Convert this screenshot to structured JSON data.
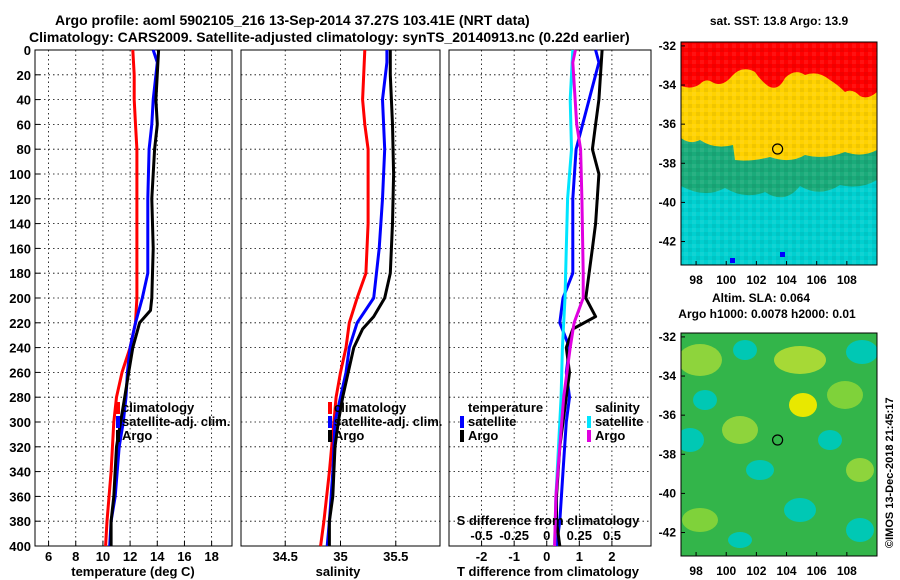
{
  "header": {
    "title_line1": "Argo profile: aoml 5902105_216 13-Sep-2014 37.27S 103.41E (NRT data)",
    "title_line2": "Climatology: CARS2009. Satellite-adjusted climatology: synTS_20140913.nc (0.22d earlier)"
  },
  "credit": "©IMOS 13-Dec-2018 21:45:17",
  "colors": {
    "climatology": "#ff0000",
    "satellite": "#0000ff",
    "argo": "#000000",
    "salinity_satellite": "#00e5ff",
    "salinity_argo": "#e000e0"
  },
  "chart_data": [
    {
      "type": "line",
      "title": "",
      "xlabel": "temperature (deg C)",
      "ylabel": "",
      "xlim": [
        5,
        19.5
      ],
      "ylim": [
        400,
        0
      ],
      "xticks": [
        6,
        8,
        10,
        12,
        14,
        16,
        18
      ],
      "yticks": [
        0,
        20,
        40,
        60,
        80,
        100,
        120,
        140,
        160,
        180,
        200,
        220,
        240,
        260,
        280,
        300,
        320,
        340,
        360,
        380,
        400
      ],
      "grid": true,
      "legend": {
        "position": "center-right",
        "labels": [
          "climatology",
          "satellite-adj. clim.",
          "Argo"
        ]
      },
      "series": [
        {
          "name": "climatology",
          "color": "#ff0000",
          "points": [
            [
              12.2,
              0
            ],
            [
              12.3,
              20
            ],
            [
              12.3,
              40
            ],
            [
              12.4,
              60
            ],
            [
              12.5,
              80
            ],
            [
              12.5,
              120
            ],
            [
              12.5,
              200
            ],
            [
              12.4,
              220
            ],
            [
              12.0,
              240
            ],
            [
              11.4,
              260
            ],
            [
              11.0,
              280
            ],
            [
              10.8,
              300
            ],
            [
              10.6,
              340
            ],
            [
              10.3,
              380
            ],
            [
              10.2,
              400
            ]
          ]
        },
        {
          "name": "satellite-adj. clim.",
          "color": "#0000ff",
          "points": [
            [
              13.7,
              0
            ],
            [
              14.0,
              10
            ],
            [
              13.7,
              40
            ],
            [
              13.6,
              60
            ],
            [
              13.4,
              80
            ],
            [
              13.3,
              120
            ],
            [
              13.3,
              180
            ],
            [
              12.9,
              200
            ],
            [
              12.4,
              220
            ],
            [
              12.0,
              240
            ],
            [
              11.8,
              260
            ],
            [
              11.7,
              280
            ],
            [
              11.5,
              300
            ],
            [
              11.2,
              320
            ],
            [
              10.9,
              360
            ],
            [
              10.6,
              380
            ],
            [
              10.5,
              400
            ]
          ]
        },
        {
          "name": "Argo",
          "color": "#000000",
          "points": [
            [
              14.1,
              0
            ],
            [
              13.9,
              40
            ],
            [
              14.0,
              60
            ],
            [
              13.8,
              80
            ],
            [
              13.7,
              100
            ],
            [
              13.6,
              120
            ],
            [
              13.7,
              160
            ],
            [
              13.6,
              200
            ],
            [
              13.5,
              210
            ],
            [
              12.7,
              220
            ],
            [
              12.2,
              240
            ],
            [
              11.9,
              260
            ],
            [
              11.6,
              280
            ],
            [
              11.3,
              300
            ],
            [
              11.0,
              320
            ],
            [
              10.8,
              360
            ],
            [
              10.6,
              380
            ],
            [
              10.6,
              400
            ]
          ]
        }
      ]
    },
    {
      "type": "line",
      "title": "",
      "xlabel": "salinity",
      "ylabel": "",
      "xlim": [
        34.1,
        35.9
      ],
      "ylim": [
        400,
        0
      ],
      "xticks": [
        34.5,
        35,
        35.5
      ],
      "xtick_labels": [
        "34.5",
        "35",
        "35.5"
      ],
      "grid": true,
      "legend": {
        "position": "center-right",
        "labels": [
          "climatology",
          "satellite-adj. clim.",
          "Argo"
        ]
      },
      "series": [
        {
          "name": "climatology",
          "color": "#ff0000",
          "points": [
            [
              35.22,
              0
            ],
            [
              35.2,
              40
            ],
            [
              35.22,
              60
            ],
            [
              35.25,
              80
            ],
            [
              35.25,
              140
            ],
            [
              35.23,
              180
            ],
            [
              35.15,
              200
            ],
            [
              35.08,
              220
            ],
            [
              35.05,
              240
            ],
            [
              35.0,
              260
            ],
            [
              34.96,
              280
            ],
            [
              34.94,
              300
            ],
            [
              34.9,
              340
            ],
            [
              34.85,
              380
            ],
            [
              34.82,
              400
            ]
          ]
        },
        {
          "name": "satellite-adj. clim.",
          "color": "#0000ff",
          "points": [
            [
              35.42,
              0
            ],
            [
              35.42,
              10
            ],
            [
              35.38,
              40
            ],
            [
              35.4,
              80
            ],
            [
              35.38,
              120
            ],
            [
              35.35,
              160
            ],
            [
              35.3,
              200
            ],
            [
              35.15,
              220
            ],
            [
              35.08,
              240
            ],
            [
              35.05,
              260
            ],
            [
              35.0,
              280
            ],
            [
              34.95,
              300
            ],
            [
              34.93,
              340
            ],
            [
              34.9,
              380
            ],
            [
              34.88,
              400
            ]
          ]
        },
        {
          "name": "Argo",
          "color": "#000000",
          "points": [
            [
              35.45,
              0
            ],
            [
              35.45,
              20
            ],
            [
              35.47,
              60
            ],
            [
              35.48,
              100
            ],
            [
              35.47,
              140
            ],
            [
              35.45,
              180
            ],
            [
              35.4,
              200
            ],
            [
              35.3,
              215
            ],
            [
              35.2,
              225
            ],
            [
              35.12,
              240
            ],
            [
              35.07,
              260
            ],
            [
              35.02,
              280
            ],
            [
              34.98,
              300
            ],
            [
              34.95,
              320
            ],
            [
              34.93,
              360
            ],
            [
              34.9,
              380
            ],
            [
              34.9,
              400
            ]
          ]
        }
      ]
    },
    {
      "type": "line",
      "title": "",
      "xlabel": "T difference from climatology",
      "xlabel_top": "S difference from climatology",
      "ylabel": "",
      "xlim": [
        -3,
        3.2
      ],
      "ylim": [
        400,
        0
      ],
      "xticks": [
        -2,
        -1,
        0,
        1,
        2
      ],
      "xticks_top": [
        -0.5,
        -0.25,
        0,
        0.25,
        0.5
      ],
      "xtick_labels_top": [
        "-0.5",
        "-0.25",
        "0",
        "0.25",
        "0.5"
      ],
      "grid": true,
      "legend": {
        "position": "center",
        "groups": [
          {
            "heading": "temperature",
            "labels": [
              "satellite",
              "Argo"
            ]
          },
          {
            "heading": "salinity",
            "labels": [
              "satellite",
              "Argo"
            ]
          }
        ]
      },
      "series": [
        {
          "name": "temperature satellite",
          "color": "#0000ff",
          "points": [
            [
              1.5,
              0
            ],
            [
              1.6,
              10
            ],
            [
              1.3,
              40
            ],
            [
              1.1,
              60
            ],
            [
              0.9,
              80
            ],
            [
              0.8,
              120
            ],
            [
              0.8,
              180
            ],
            [
              0.5,
              200
            ],
            [
              0.4,
              220
            ],
            [
              0.7,
              240
            ],
            [
              0.6,
              260
            ],
            [
              0.7,
              280
            ],
            [
              0.6,
              300
            ],
            [
              0.5,
              340
            ],
            [
              0.4,
              380
            ],
            [
              0.3,
              400
            ]
          ]
        },
        {
          "name": "temperature Argo",
          "color": "#000000",
          "points": [
            [
              1.7,
              0
            ],
            [
              1.6,
              40
            ],
            [
              1.5,
              60
            ],
            [
              1.4,
              80
            ],
            [
              1.6,
              100
            ],
            [
              1.5,
              140
            ],
            [
              1.4,
              160
            ],
            [
              1.3,
              180
            ],
            [
              1.2,
              200
            ],
            [
              1.5,
              215
            ],
            [
              0.8,
              225
            ],
            [
              0.6,
              240
            ],
            [
              0.7,
              260
            ],
            [
              0.6,
              280
            ],
            [
              0.5,
              300
            ],
            [
              0.4,
              320
            ],
            [
              0.3,
              360
            ],
            [
              0.3,
              380
            ],
            [
              0.4,
              400
            ]
          ]
        },
        {
          "name": "salinity satellite",
          "color": "#00e5ff",
          "points": [
            [
              0.2,
              0
            ],
            [
              0.18,
              40
            ],
            [
              0.19,
              80
            ],
            [
              0.16,
              120
            ],
            [
              0.15,
              160
            ],
            [
              0.14,
              200
            ],
            [
              0.12,
              240
            ],
            [
              0.11,
              280
            ],
            [
              0.09,
              320
            ],
            [
              0.07,
              360
            ],
            [
              0.06,
              400
            ]
          ]
        },
        {
          "name": "salinity Argo",
          "color": "#e000e0",
          "points": [
            [
              0.22,
              0
            ],
            [
              0.2,
              10
            ],
            [
              0.23,
              60
            ],
            [
              0.26,
              80
            ],
            [
              0.27,
              120
            ],
            [
              0.28,
              180
            ],
            [
              0.28,
              200
            ],
            [
              0.21,
              220
            ],
            [
              0.18,
              240
            ],
            [
              0.13,
              280
            ],
            [
              0.1,
              320
            ],
            [
              0.07,
              360
            ],
            [
              0.06,
              400
            ]
          ]
        }
      ]
    },
    {
      "type": "heatmap",
      "title": "sat. SST: 13.8 Argo: 13.9",
      "xlabel": "",
      "ylabel": "",
      "xlim": [
        97,
        110
      ],
      "ylim": [
        -43.2,
        -31.8
      ],
      "xticks": [
        98,
        100,
        102,
        104,
        106,
        108
      ],
      "yticks": [
        -32,
        -34,
        -36,
        -38,
        -40,
        -42
      ],
      "argo_position": [
        103.41,
        -37.27
      ],
      "zones_north_to_south": [
        "red",
        "yellow",
        "green",
        "cyan"
      ]
    },
    {
      "type": "heatmap",
      "title": "Altim. SLA: 0.064",
      "subtitle": "Argo h1000: 0.0078 h2000: 0.01",
      "xlabel": "",
      "ylabel": "",
      "xlim": [
        97,
        110
      ],
      "ylim": [
        -43.2,
        -31.8
      ],
      "xticks": [
        98,
        100,
        102,
        104,
        106,
        108
      ],
      "yticks": [
        -32,
        -34,
        -36,
        -38,
        -40,
        -42
      ],
      "argo_position": [
        103.41,
        -37.27
      ]
    }
  ]
}
